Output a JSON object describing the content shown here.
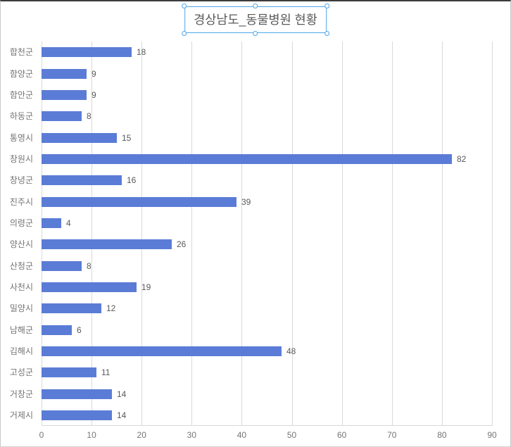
{
  "colors": {
    "bar": "#5B7CD6",
    "gridline": "#D9D9D9",
    "title_text": "#595959",
    "value_label_text": "#595959",
    "category_text": "#737373",
    "tick_text": "#757575",
    "selection_border": "#4EA6EA"
  },
  "chart_data": {
    "type": "bar",
    "orientation": "horizontal",
    "title": "경상남도_동물병원 현황",
    "title_selected": true,
    "categories": [
      "합천군",
      "함양군",
      "함안군",
      "하동군",
      "통영시",
      "창원시",
      "창녕군",
      "진주시",
      "의령군",
      "양산시",
      "산청군",
      "사천시",
      "밀양시",
      "남해군",
      "김해시",
      "고성군",
      "거창군",
      "거제시"
    ],
    "values": [
      18,
      9,
      9,
      8,
      15,
      82,
      16,
      39,
      4,
      26,
      8,
      19,
      12,
      6,
      48,
      11,
      14,
      14
    ],
    "x_ticks": [
      0,
      10,
      20,
      30,
      40,
      50,
      60,
      70,
      80,
      90
    ],
    "xlim": [
      0,
      90
    ],
    "grid": true,
    "data_labels": true,
    "legend": false,
    "xlabel": "",
    "ylabel": ""
  }
}
